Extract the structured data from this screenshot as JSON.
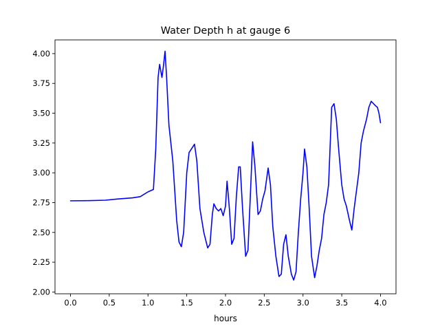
{
  "chart_data": {
    "type": "line",
    "title": "Water Depth h at gauge 6",
    "xlabel": "hours",
    "ylabel": "",
    "xlim": [
      -0.2,
      4.2
    ],
    "ylim": [
      1.985,
      4.115
    ],
    "xticks": [
      0.0,
      0.5,
      1.0,
      1.5,
      2.0,
      2.5,
      3.0,
      3.5,
      4.0
    ],
    "xtick_labels": [
      "0.0",
      "0.5",
      "1.0",
      "1.5",
      "2.0",
      "2.5",
      "3.0",
      "3.5",
      "4.0"
    ],
    "yticks": [
      2.0,
      2.25,
      2.5,
      2.75,
      3.0,
      3.25,
      3.5,
      3.75,
      4.0
    ],
    "ytick_labels": [
      "2.00",
      "2.25",
      "2.50",
      "2.75",
      "3.00",
      "3.25",
      "3.50",
      "3.75",
      "4.00"
    ],
    "grid": false,
    "series": [
      {
        "color": "#0000ff",
        "x": [
          0.0,
          0.2,
          0.45,
          0.6,
          0.8,
          0.9,
          0.95,
          1.0,
          1.07,
          1.1,
          1.13,
          1.15,
          1.18,
          1.2,
          1.22,
          1.24,
          1.27,
          1.32,
          1.37,
          1.4,
          1.43,
          1.46,
          1.5,
          1.53,
          1.56,
          1.6,
          1.63,
          1.67,
          1.72,
          1.77,
          1.8,
          1.83,
          1.85,
          1.88,
          1.91,
          1.94,
          1.97,
          2.0,
          2.02,
          2.05,
          2.08,
          2.11,
          2.14,
          2.17,
          2.19,
          2.22,
          2.26,
          2.29,
          2.32,
          2.35,
          2.38,
          2.42,
          2.45,
          2.48,
          2.51,
          2.55,
          2.58,
          2.61,
          2.65,
          2.69,
          2.72,
          2.75,
          2.78,
          2.81,
          2.85,
          2.88,
          2.91,
          2.94,
          2.97,
          3.0,
          3.02,
          3.05,
          3.08,
          3.11,
          3.15,
          3.18,
          3.21,
          3.24,
          3.27,
          3.3,
          3.33,
          3.37,
          3.4,
          3.43,
          3.46,
          3.5,
          3.53,
          3.56,
          3.6,
          3.63,
          3.66,
          3.69,
          3.72,
          3.75,
          3.78,
          3.82,
          3.85,
          3.88,
          3.91,
          3.94,
          3.96,
          3.98,
          4.0
        ],
        "y": [
          2.765,
          2.766,
          2.77,
          2.78,
          2.79,
          2.8,
          2.82,
          2.84,
          2.86,
          3.2,
          3.8,
          3.91,
          3.8,
          3.9,
          4.02,
          3.8,
          3.4,
          3.1,
          2.6,
          2.42,
          2.38,
          2.5,
          3.0,
          3.17,
          3.2,
          3.24,
          3.1,
          2.7,
          2.5,
          2.37,
          2.4,
          2.65,
          2.74,
          2.7,
          2.68,
          2.7,
          2.64,
          2.72,
          2.93,
          2.7,
          2.4,
          2.45,
          2.8,
          3.05,
          3.05,
          2.7,
          2.3,
          2.35,
          2.8,
          3.26,
          3.05,
          2.65,
          2.68,
          2.78,
          2.85,
          3.04,
          2.9,
          2.55,
          2.3,
          2.13,
          2.15,
          2.4,
          2.48,
          2.3,
          2.15,
          2.1,
          2.17,
          2.5,
          2.78,
          3.0,
          3.2,
          3.05,
          2.7,
          2.3,
          2.12,
          2.22,
          2.35,
          2.45,
          2.65,
          2.75,
          2.9,
          3.55,
          3.58,
          3.45,
          3.2,
          2.9,
          2.78,
          2.72,
          2.6,
          2.52,
          2.7,
          2.85,
          3.0,
          3.25,
          3.35,
          3.45,
          3.55,
          3.6,
          3.58,
          3.56,
          3.55,
          3.5,
          3.42
        ]
      }
    ]
  }
}
